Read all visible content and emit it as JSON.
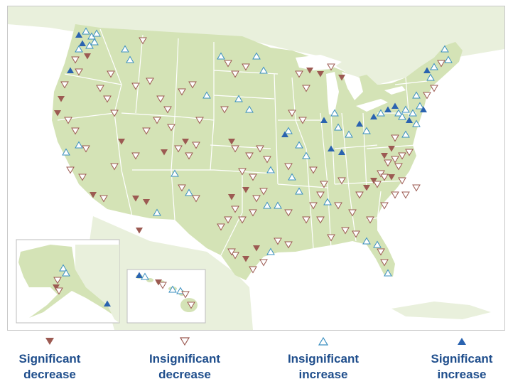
{
  "colors": {
    "land": "#d4e3b6",
    "land_alt": "#c9dca8",
    "water": "#ffffff",
    "border": "#ffffff",
    "sig_decrease": "#9c5a52",
    "insig_decrease": "#9c5a52",
    "insig_increase": "#3a8fc0",
    "sig_increase": "#2a63b0",
    "legend_text": "#1f4e8c"
  },
  "legend": [
    {
      "key": "sig_decrease",
      "label": "Significant\ndecrease",
      "icon": "filled-down-triangle-icon"
    },
    {
      "key": "insig_decrease",
      "label": "Insignificant\ndecrease",
      "icon": "open-down-triangle-icon"
    },
    {
      "key": "insig_increase",
      "label": "Insignificant\nincrease",
      "icon": "open-up-triangle-icon"
    },
    {
      "key": "sig_increase",
      "label": "Significant\nincrease",
      "icon": "filled-up-triangle-icon"
    }
  ]
}
